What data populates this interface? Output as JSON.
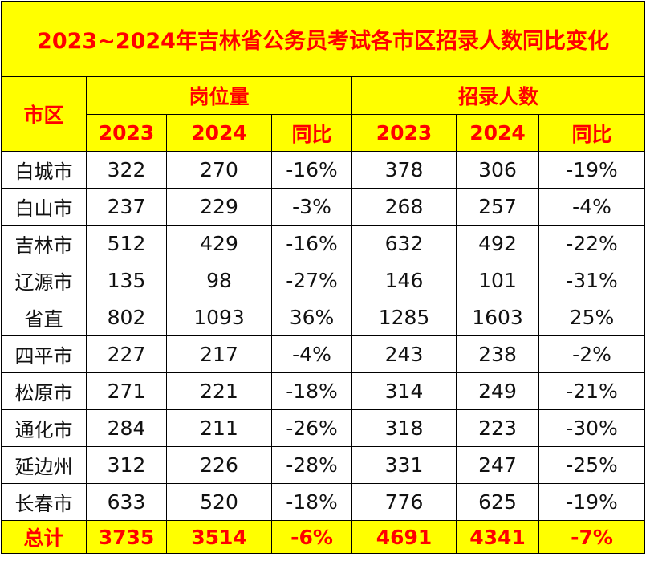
{
  "title": "2023~2024年吉林省公务员考试各市区招录人数同比变化",
  "header": {
    "district_label": "市区",
    "group_positions": "岗位量",
    "group_recruits": "招录人数",
    "sub_2023": "2023",
    "sub_2024": "2024",
    "sub_yoy": "同比"
  },
  "chart_data": {
    "type": "table",
    "title": "2023~2024年吉林省公务员考试各市区招录人数同比变化",
    "columns": [
      "市区",
      "岗位量 2023",
      "岗位量 2024",
      "岗位量 同比",
      "招录人数 2023",
      "招录人数 2024",
      "招录人数 同比"
    ],
    "rows": [
      [
        "白城市",
        "322",
        "270",
        "-16%",
        "378",
        "306",
        "-19%"
      ],
      [
        "白山市",
        "237",
        "229",
        "-3%",
        "268",
        "257",
        "-4%"
      ],
      [
        "吉林市",
        "512",
        "429",
        "-16%",
        "632",
        "492",
        "-22%"
      ],
      [
        "辽源市",
        "135",
        "98",
        "-27%",
        "146",
        "101",
        "-31%"
      ],
      [
        "省直",
        "802",
        "1093",
        "36%",
        "1285",
        "1603",
        "25%"
      ],
      [
        "四平市",
        "227",
        "217",
        "-4%",
        "243",
        "238",
        "-2%"
      ],
      [
        "松原市",
        "271",
        "221",
        "-18%",
        "314",
        "249",
        "-21%"
      ],
      [
        "通化市",
        "284",
        "211",
        "-26%",
        "318",
        "223",
        "-30%"
      ],
      [
        "延边州",
        "312",
        "226",
        "-28%",
        "331",
        "247",
        "-25%"
      ],
      [
        "长春市",
        "633",
        "520",
        "-18%",
        "776",
        "625",
        "-19%"
      ]
    ],
    "total": [
      "总计",
      "3735",
      "3514",
      "-6%",
      "4691",
      "4341",
      "-7%"
    ]
  },
  "colors": {
    "header_bg": "#ffff00",
    "header_text": "#ff0000",
    "body_text": "#111111",
    "border": "#000000"
  }
}
